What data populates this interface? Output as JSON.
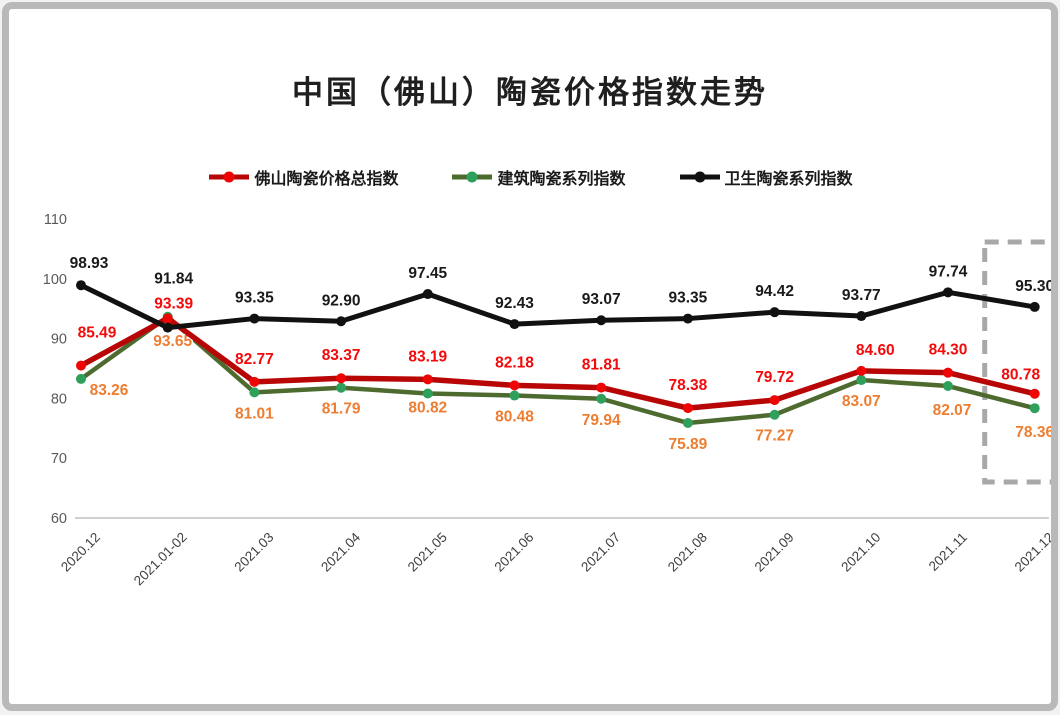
{
  "window": {
    "background": "#ffffff",
    "border_color": "#b9b9b9"
  },
  "title": "中国（佛山）陶瓷价格指数走势",
  "chart_data": {
    "type": "line",
    "title": "中国（佛山）陶瓷价格指数走势",
    "categories": [
      "2020.12",
      "2021.01-02",
      "2021.03",
      "2021.04",
      "2021.05",
      "2021.06",
      "2021.07",
      "2021.08",
      "2021.09",
      "2021.10",
      "2021.11",
      "2021.12"
    ],
    "series": [
      {
        "name": "佛山陶瓷价格总指数",
        "line_color": "#b80606",
        "marker_color": "#ee0505",
        "label_color": "#f40a0a",
        "values": [
          85.49,
          93.39,
          82.77,
          83.37,
          83.19,
          82.18,
          81.81,
          78.38,
          79.72,
          84.6,
          84.3,
          80.78
        ],
        "label_default_offset": [
          0,
          -18
        ],
        "label_offsets": {
          "0": [
            16,
            -28
          ],
          "1": [
            6,
            -10
          ],
          "9": [
            14,
            -16
          ],
          "11": [
            -14,
            -14
          ]
        }
      },
      {
        "name": "建筑陶瓷系列指数",
        "line_color": "#4d6b2f",
        "marker_color": "#2fa05c",
        "label_color": "#ed7d31",
        "values": [
          83.26,
          93.65,
          81.01,
          81.79,
          80.82,
          80.48,
          79.94,
          75.89,
          77.27,
          83.07,
          82.07,
          78.36
        ],
        "label_default_offset": [
          0,
          26
        ],
        "label_offsets": {
          "0": [
            28,
            16
          ],
          "1": [
            5,
            29
          ],
          "4": [
            0,
            19
          ],
          "10": [
            4,
            29
          ],
          "11": [
            0,
            29
          ]
        }
      },
      {
        "name": "卫生陶瓷系列指数",
        "line_color": "#111111",
        "marker_color": "#111111",
        "label_color": "#1a1a1a",
        "values": [
          98.93,
          91.84,
          93.35,
          92.9,
          97.45,
          92.43,
          93.07,
          93.35,
          94.42,
          93.77,
          97.74,
          95.3
        ],
        "label_default_offset": [
          0,
          -16
        ],
        "label_offsets": {
          "0": [
            8,
            -17
          ],
          "1": [
            6,
            -44
          ]
        }
      }
    ],
    "ylim": [
      60,
      110
    ],
    "yticks": [
      60,
      70,
      80,
      90,
      100,
      110
    ],
    "grid": false,
    "legend_position": "top",
    "y_tick_color": "#595959",
    "x_tick_color": "#404040",
    "baseline_color": "#c0c0c0",
    "highlight_box": {
      "category": "2021.12",
      "color": "#a8a8a8"
    }
  }
}
